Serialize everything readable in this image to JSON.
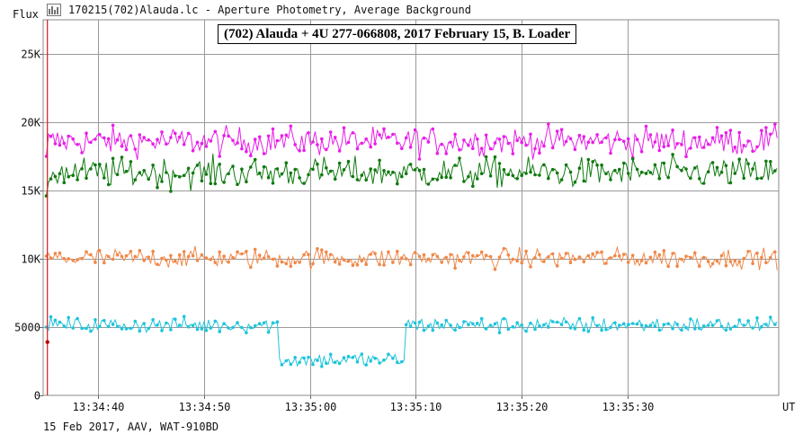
{
  "window": {
    "title": "170215(702)Alauda.lc - Aperture Photometry, Average Background",
    "icon": "lightcurve-chart-icon"
  },
  "footer": "15 Feb 2017, AAV, WAT-910BD",
  "chart_data": {
    "type": "line",
    "title": "(702) Alauda + 4U 277-066808, 2017 February 15, B. Loader",
    "ylabel": "Flux",
    "xlabel": "UT",
    "ylim": [
      0,
      27500
    ],
    "yticks": [
      {
        "v": 0,
        "label": "0"
      },
      {
        "v": 5000,
        "label": "5000"
      },
      {
        "v": 10000,
        "label": "10K"
      },
      {
        "v": 15000,
        "label": "15K"
      },
      {
        "v": 20000,
        "label": "20K"
      },
      {
        "v": 25000,
        "label": "25K"
      }
    ],
    "xlim_seconds": [
      -45.2,
      24.3
    ],
    "xticks": [
      {
        "t": -40,
        "label": "13:34:40"
      },
      {
        "t": -30,
        "label": "13:34:50"
      },
      {
        "t": -20,
        "label": "13:35:00"
      },
      {
        "t": -10,
        "label": "13:35:10"
      },
      {
        "t": 0,
        "label": "13:35:20"
      },
      {
        "t": 10,
        "label": "13:35:30"
      }
    ],
    "x_offset_note": "",
    "grid": true,
    "marker_line_time": "13:34:35.2",
    "series": [
      {
        "color": "#e81ee8",
        "mean": 18600,
        "noise": 950,
        "start": 17500
      },
      {
        "color": "#107a10",
        "mean": 16300,
        "noise": 1000,
        "start": 14600
      },
      {
        "color": "#f08848",
        "mean": 10050,
        "noise": 650,
        "start": 10200
      },
      {
        "color": "#1ec4dc",
        "mean": 5150,
        "noise": 520,
        "start": 5000,
        "dip": {
          "from_time": "13:34:57",
          "to_time": "13:35:09",
          "mean": 2600
        }
      }
    ]
  }
}
